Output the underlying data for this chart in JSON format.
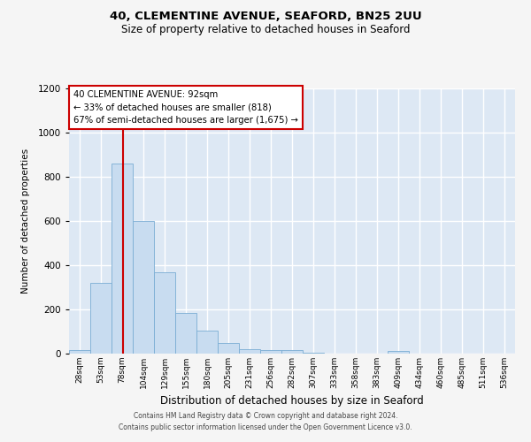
{
  "title": "40, CLEMENTINE AVENUE, SEAFORD, BN25 2UU",
  "subtitle": "Size of property relative to detached houses in Seaford",
  "xlabel": "Distribution of detached houses by size in Seaford",
  "ylabel": "Number of detached properties",
  "bar_labels": [
    "28sqm",
    "53sqm",
    "78sqm",
    "104sqm",
    "129sqm",
    "155sqm",
    "180sqm",
    "205sqm",
    "231sqm",
    "256sqm",
    "282sqm",
    "307sqm",
    "333sqm",
    "358sqm",
    "383sqm",
    "409sqm",
    "434sqm",
    "460sqm",
    "485sqm",
    "511sqm",
    "536sqm"
  ],
  "bar_values": [
    15,
    320,
    860,
    600,
    370,
    185,
    105,
    47,
    20,
    18,
    18,
    5,
    0,
    0,
    0,
    12,
    0,
    0,
    0,
    0,
    0
  ],
  "bar_color": "#c8dcf0",
  "bar_edge_color": "#7aadd4",
  "background_color": "#dde8f4",
  "grid_color": "#ffffff",
  "vline_x": 2.56,
  "vline_color": "#cc0000",
  "ylim": [
    0,
    1200
  ],
  "yticks": [
    0,
    200,
    400,
    600,
    800,
    1000,
    1200
  ],
  "annotation_title": "40 CLEMENTINE AVENUE: 92sqm",
  "annotation_line1": "← 33% of detached houses are smaller (818)",
  "annotation_line2": "67% of semi-detached houses are larger (1,675) →",
  "annotation_box_color": "#ffffff",
  "annotation_box_edge": "#cc0000",
  "footer_line1": "Contains HM Land Registry data © Crown copyright and database right 2024.",
  "footer_line2": "Contains public sector information licensed under the Open Government Licence v3.0."
}
